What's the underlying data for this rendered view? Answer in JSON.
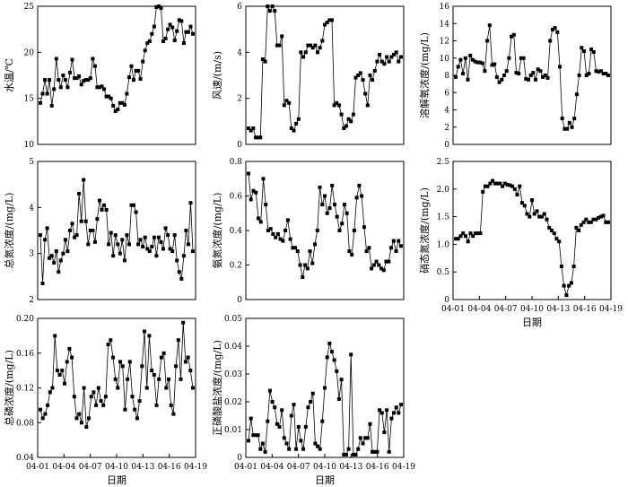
{
  "chart_data": [
    {
      "type": "line",
      "ylabel": "水温/℃",
      "xlabel": "",
      "ylim": [
        10,
        25
      ],
      "yticks": [
        "10",
        "15",
        "20",
        "25"
      ],
      "xticks": [],
      "series": [
        {
          "values": [
            14.5,
            15.5,
            17,
            15.5,
            17,
            14.2,
            16,
            19.3,
            17,
            16.2,
            17.5,
            17,
            16.2,
            17.8,
            19.2,
            17.2,
            17.2,
            17.4,
            16.5,
            16.9,
            17,
            17,
            17.2,
            19.3,
            18.5,
            16.2,
            16.2,
            16.3,
            16,
            15.2,
            15.2,
            15,
            14.2,
            13.6,
            13.8,
            14.5,
            14.5,
            14.3,
            15.5,
            17.3,
            18.5,
            17,
            18,
            18,
            17.1,
            19,
            20.2,
            21,
            21.2,
            22,
            22.8,
            24.9,
            25,
            24.8,
            21.2,
            21.5,
            22.5,
            23,
            22.7,
            21.3,
            22.3,
            23.5,
            23.4,
            21,
            22.2,
            22.2,
            22.8,
            22
          ]
        }
      ]
    },
    {
      "type": "line",
      "ylabel": "风速/(m/s)",
      "xlabel": "",
      "ylim": [
        0,
        6
      ],
      "yticks": [
        "0",
        "2",
        "4",
        "6"
      ],
      "xticks": [],
      "series": [
        {
          "values": [
            0.7,
            0.6,
            0.7,
            0.3,
            0.3,
            0.3,
            3.7,
            3.6,
            6,
            5.8,
            6,
            5.8,
            4.3,
            4.3,
            4.7,
            1.7,
            1.9,
            1.8,
            0.7,
            0.6,
            0.9,
            1.1,
            4,
            3.8,
            4,
            4.3,
            4.3,
            4.2,
            4.3,
            4,
            4.2,
            4.5,
            5.2,
            5.3,
            5.4,
            5.4,
            1.7,
            1.8,
            1.7,
            1.3,
            0.7,
            0.8,
            1.1,
            1,
            1.3,
            2.9,
            3,
            3.1,
            2.8,
            2.2,
            1.7,
            3,
            2.8,
            3.2,
            3.6,
            3.9,
            3.6,
            3.5,
            3.8,
            3.6,
            3.8,
            3.9,
            4,
            3.6,
            3.8
          ]
        }
      ]
    },
    {
      "type": "line",
      "ylabel": "溶解氧浓度/(mg/L)",
      "xlabel": "",
      "ylim": [
        0,
        16
      ],
      "yticks": [
        "0",
        "2",
        "4",
        "6",
        "8",
        "10",
        "12",
        "14",
        "16"
      ],
      "xticks": [],
      "series": [
        {
          "values": [
            7.8,
            9,
            9.8,
            8.2,
            10,
            7.5,
            10.3,
            9.8,
            9.6,
            9.5,
            9.5,
            9.4,
            8.5,
            12,
            13.8,
            9.2,
            9.3,
            7.8,
            7.2,
            7.5,
            8,
            8.5,
            10,
            12.5,
            12.7,
            8.3,
            8.2,
            10,
            10,
            7.6,
            7.5,
            8,
            8.3,
            7.5,
            8.7,
            8.5,
            7.8,
            8,
            7.7,
            12,
            13.3,
            13.5,
            13,
            9,
            3,
            1.8,
            1.8,
            2.5,
            2,
            3,
            5.8,
            8,
            11.2,
            10.8,
            8,
            8.2,
            11,
            10.7,
            8.5,
            8.4,
            8.5,
            8.2,
            8.2,
            8
          ]
        }
      ]
    },
    {
      "type": "line",
      "ylabel": "总氮浓度/(mg/L)",
      "xlabel": "",
      "ylim": [
        2,
        5
      ],
      "yticks": [
        "2",
        "3",
        "4",
        "5"
      ],
      "xticks": [],
      "series": [
        {
          "values": [
            3.4,
            2.35,
            3.3,
            3.55,
            2.9,
            2.95,
            2.8,
            3.05,
            2.6,
            2.85,
            3.0,
            3.3,
            3.05,
            3.5,
            3.65,
            3.35,
            3.4,
            4.3,
            3.7,
            4.6,
            3.7,
            3.2,
            3.5,
            3.5,
            3.25,
            3.75,
            4.15,
            3.95,
            4.05,
            3.95,
            3.2,
            3.45,
            2.95,
            3.4,
            3.2,
            3.0,
            3.3,
            2.85,
            3.4,
            3.2,
            4.05,
            4.05,
            3.9,
            3.2,
            3.3,
            3.15,
            3.35,
            3.1,
            3.05,
            3.15,
            3.35,
            2.95,
            3.35,
            3.25,
            3.1,
            3.55,
            3.4,
            3.1,
            3.05,
            3.4,
            2.85,
            2.6,
            2.45,
            2.95,
            3.5,
            3.2,
            4.1,
            3.05
          ]
        }
      ]
    },
    {
      "type": "line",
      "ylabel": "氨氮浓度/(mg/L)",
      "xlabel": "",
      "ylim": [
        0,
        0.8
      ],
      "yticks": [
        "0",
        "0.2",
        "0.4",
        "0.6",
        "0.8"
      ],
      "xticks": [],
      "series": [
        {
          "values": [
            0.73,
            0.58,
            0.63,
            0.62,
            0.47,
            0.45,
            0.7,
            0.55,
            0.4,
            0.41,
            0.38,
            0.36,
            0.38,
            0.35,
            0.34,
            0.4,
            0.46,
            0.35,
            0.3,
            0.3,
            0.28,
            0.2,
            0.13,
            0.2,
            0.18,
            0.28,
            0.21,
            0.32,
            0.4,
            0.65,
            0.55,
            0.6,
            0.5,
            0.53,
            0.66,
            0.55,
            0.48,
            0.4,
            0.44,
            0.55,
            0.5,
            0.28,
            0.26,
            0.4,
            0.59,
            0.66,
            0.6,
            0.42,
            0.28,
            0.3,
            0.18,
            0.2,
            0.22,
            0.2,
            0.18,
            0.17,
            0.22,
            0.22,
            0.3,
            0.34,
            0.28,
            0.34,
            0.31
          ]
        }
      ]
    },
    {
      "type": "line",
      "ylabel": "硝态氮浓度/(mg/L)",
      "xlabel": "日期",
      "ylim": [
        0,
        2.5
      ],
      "yticks": [
        "0",
        "0.5",
        "1.0",
        "1.5",
        "2.0",
        "2.5"
      ],
      "xticks": [
        "04-01",
        "04-04",
        "04-07",
        "04-10",
        "04-13",
        "04-16",
        "04-19"
      ],
      "series": [
        {
          "values": [
            1.1,
            1.1,
            1.15,
            1.2,
            1.15,
            1.05,
            1.2,
            1.15,
            1.2,
            1.2,
            1.2,
            1.95,
            2.05,
            2.05,
            2.1,
            2.15,
            2.1,
            2.1,
            2.1,
            2.05,
            2.1,
            2.08,
            2.07,
            2.05,
            2.0,
            1.9,
            2.05,
            1.75,
            1.7,
            1.55,
            1.5,
            1.8,
            1.55,
            1.6,
            1.5,
            1.5,
            1.55,
            1.45,
            1.3,
            1.25,
            1.2,
            1.1,
            1.05,
            0.6,
            0.25,
            0.08,
            0.25,
            0.3,
            0.6,
            1.3,
            1.25,
            1.35,
            1.4,
            1.45,
            1.4,
            1.4,
            1.45,
            1.45,
            1.48,
            1.5,
            1.52,
            1.4,
            1.4
          ]
        }
      ]
    },
    {
      "type": "line",
      "ylabel": "总磷浓度/(mg/L)",
      "xlabel": "日期",
      "ylim": [
        0.04,
        0.2
      ],
      "yticks": [
        "0.04",
        "0.08",
        "0.12",
        "0.16",
        "0.20"
      ],
      "xticks": [
        "04-01",
        "04-04",
        "04-07",
        "04-10",
        "04-13",
        "04-16",
        "04-19"
      ],
      "series": [
        {
          "values": [
            0.095,
            0.085,
            0.09,
            0.1,
            0.115,
            0.12,
            0.18,
            0.14,
            0.135,
            0.14,
            0.125,
            0.15,
            0.165,
            0.155,
            0.11,
            0.085,
            0.09,
            0.08,
            0.12,
            0.075,
            0.085,
            0.11,
            0.115,
            0.1,
            0.12,
            0.105,
            0.1,
            0.11,
            0.17,
            0.175,
            0.155,
            0.13,
            0.12,
            0.15,
            0.145,
            0.095,
            0.13,
            0.15,
            0.11,
            0.095,
            0.085,
            0.105,
            0.145,
            0.185,
            0.12,
            0.18,
            0.14,
            0.135,
            0.1,
            0.13,
            0.155,
            0.16,
            0.12,
            0.13,
            0.1,
            0.09,
            0.145,
            0.175,
            0.13,
            0.195,
            0.15,
            0.155,
            0.14,
            0.12
          ]
        }
      ]
    },
    {
      "type": "line",
      "ylabel": "正磷酸盐浓度/(mg/L)",
      "xlabel": "日期",
      "ylim": [
        0,
        0.05
      ],
      "yticks": [
        "0",
        "0.01",
        "0.02",
        "0.03",
        "0.04",
        "0.05"
      ],
      "xticks": [
        "04-01",
        "04-04",
        "04-07",
        "04-10",
        "04-13",
        "04-16",
        "04-19"
      ],
      "series": [
        {
          "values": [
            0.006,
            0.014,
            0.008,
            0.008,
            0.008,
            0.003,
            0.005,
            0.002,
            0.013,
            0.024,
            0.02,
            0.018,
            0.012,
            0.011,
            0.017,
            0.007,
            0.005,
            0.003,
            0.015,
            0.019,
            0.003,
            0.011,
            0.006,
            0.003,
            0.011,
            0.018,
            0.02,
            0.023,
            0.005,
            0.004,
            0.003,
            0.013,
            0.025,
            0.036,
            0.041,
            0.038,
            0.035,
            0.031,
            0.021,
            0.028,
            0.001,
            0.001,
            0.003,
            0.037,
            0.001,
            0.001,
            0.003,
            0.007,
            0.005,
            0.007,
            0.007,
            0.012,
            0.002,
            0.002,
            0.002,
            0.017,
            0.016,
            0.009,
            0.017,
            0.002,
            0.014,
            0.016,
            0.018,
            0.016,
            0.019
          ]
        }
      ]
    }
  ]
}
